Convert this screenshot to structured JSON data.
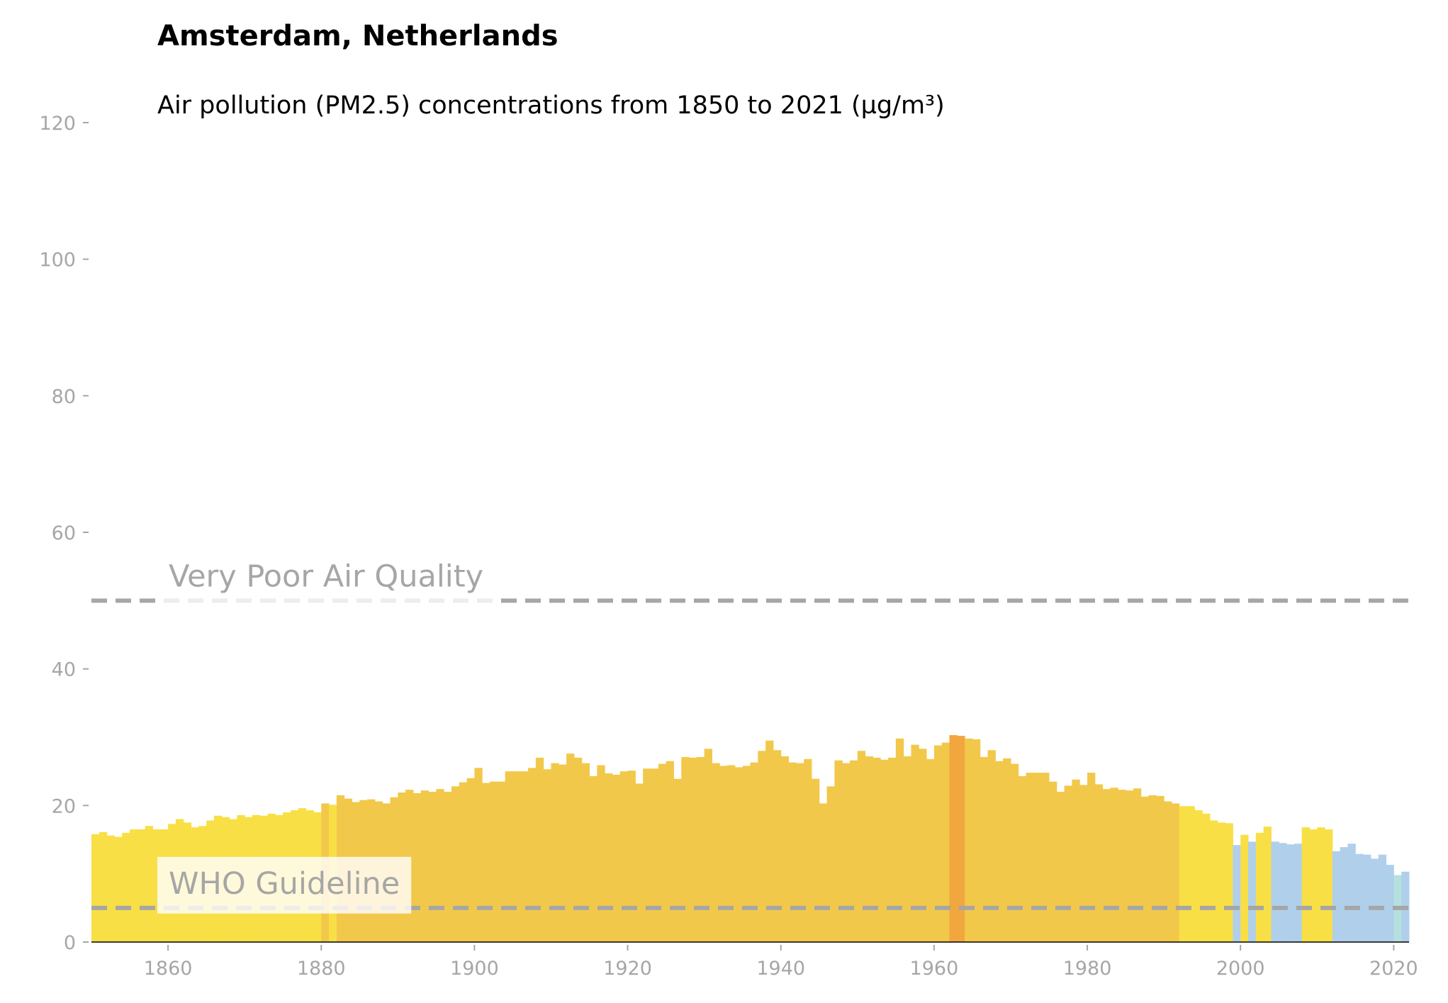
{
  "chart_data": {
    "type": "bar",
    "title": "Amsterdam, Netherlands",
    "subtitle": "Air pollution (PM2.5) concentrations from 1850 to 2021 (µg/m³)",
    "x": [
      1850,
      1851,
      1852,
      1853,
      1854,
      1855,
      1856,
      1857,
      1858,
      1859,
      1860,
      1861,
      1862,
      1863,
      1864,
      1865,
      1866,
      1867,
      1868,
      1869,
      1870,
      1871,
      1872,
      1873,
      1874,
      1875,
      1876,
      1877,
      1878,
      1879,
      1880,
      1881,
      1882,
      1883,
      1884,
      1885,
      1886,
      1887,
      1888,
      1889,
      1890,
      1891,
      1892,
      1893,
      1894,
      1895,
      1896,
      1897,
      1898,
      1899,
      1900,
      1901,
      1902,
      1903,
      1904,
      1905,
      1906,
      1907,
      1908,
      1909,
      1910,
      1911,
      1912,
      1913,
      1914,
      1915,
      1916,
      1917,
      1918,
      1919,
      1920,
      1921,
      1922,
      1923,
      1924,
      1925,
      1926,
      1927,
      1928,
      1929,
      1930,
      1931,
      1932,
      1933,
      1934,
      1935,
      1936,
      1937,
      1938,
      1939,
      1940,
      1941,
      1942,
      1943,
      1944,
      1945,
      1946,
      1947,
      1948,
      1949,
      1950,
      1951,
      1952,
      1953,
      1954,
      1955,
      1956,
      1957,
      1958,
      1959,
      1960,
      1961,
      1962,
      1963,
      1964,
      1965,
      1966,
      1967,
      1968,
      1969,
      1970,
      1971,
      1972,
      1973,
      1974,
      1975,
      1976,
      1977,
      1978,
      1979,
      1980,
      1981,
      1982,
      1983,
      1984,
      1985,
      1986,
      1987,
      1988,
      1989,
      1990,
      1991,
      1992,
      1993,
      1994,
      1995,
      1996,
      1997,
      1998,
      1999,
      2000,
      2001,
      2002,
      2003,
      2004,
      2005,
      2006,
      2007,
      2008,
      2009,
      2010,
      2011,
      2012,
      2013,
      2014,
      2015,
      2016,
      2017,
      2018,
      2019,
      2020,
      2021
    ],
    "values": [
      15.8,
      16.1,
      15.6,
      15.4,
      16.0,
      16.5,
      16.5,
      17.0,
      16.5,
      16.5,
      17.3,
      18.0,
      17.5,
      16.8,
      17.0,
      17.8,
      18.5,
      18.3,
      18.0,
      18.6,
      18.3,
      18.6,
      18.5,
      18.8,
      18.6,
      19.0,
      19.3,
      19.6,
      19.3,
      19.0,
      20.3,
      20.1,
      21.5,
      21.0,
      20.5,
      20.8,
      20.9,
      20.6,
      20.3,
      21.2,
      21.9,
      22.3,
      21.8,
      22.2,
      22.0,
      22.4,
      22.0,
      22.8,
      23.4,
      24.0,
      25.5,
      23.3,
      23.5,
      23.5,
      25.0,
      25.0,
      25.0,
      25.5,
      27.0,
      25.3,
      26.2,
      26.0,
      27.6,
      27.0,
      26.2,
      24.3,
      25.9,
      24.7,
      24.5,
      25.0,
      25.1,
      23.2,
      25.4,
      25.4,
      26.1,
      26.5,
      23.9,
      27.1,
      27.0,
      27.1,
      28.3,
      26.2,
      25.8,
      25.9,
      25.6,
      25.8,
      26.3,
      28.0,
      29.5,
      28.1,
      27.2,
      26.3,
      26.2,
      26.8,
      23.9,
      20.3,
      22.8,
      26.6,
      26.2,
      26.6,
      28.0,
      27.2,
      27.0,
      26.7,
      27.0,
      29.8,
      27.2,
      28.9,
      28.3,
      26.8,
      28.8,
      29.2,
      30.3,
      30.2,
      29.8,
      29.7,
      27.1,
      28.1,
      26.5,
      26.9,
      26.1,
      24.3,
      24.8,
      24.8,
      24.8,
      23.5,
      22.0,
      22.9,
      23.8,
      23.0,
      24.8,
      23.1,
      22.4,
      22.6,
      22.3,
      22.2,
      22.5,
      21.3,
      21.5,
      21.4,
      20.6,
      20.3,
      19.9,
      19.9,
      19.3,
      18.8,
      17.8,
      17.5,
      17.4,
      14.2,
      15.7,
      14.7,
      16.0,
      16.9,
      14.7,
      14.5,
      14.3,
      14.4,
      16.8,
      16.5,
      16.8,
      16.5,
      13.3,
      13.9,
      14.4,
      12.9,
      12.8,
      12.2,
      12.8,
      11.3,
      9.8,
      10.3
    ],
    "colors": [
      "#f8df45",
      "#f8df45",
      "#f8df45",
      "#f8df45",
      "#f8df45",
      "#f8df45",
      "#f8df45",
      "#f8df45",
      "#f8df45",
      "#f8df45",
      "#f8df45",
      "#f8df45",
      "#f8df45",
      "#f8df45",
      "#f8df45",
      "#f8df45",
      "#f8df45",
      "#f8df45",
      "#f8df45",
      "#f8df45",
      "#f8df45",
      "#f8df45",
      "#f8df45",
      "#f8df45",
      "#f8df45",
      "#f8df45",
      "#f8df45",
      "#f8df45",
      "#f8df45",
      "#f8df45",
      "#f2c84b",
      "#f8df45",
      "#f2c84b",
      "#f2c84b",
      "#f2c84b",
      "#f2c84b",
      "#f2c84b",
      "#f2c84b",
      "#f2c84b",
      "#f2c84b",
      "#f2c84b",
      "#f2c84b",
      "#f2c84b",
      "#f2c84b",
      "#f2c84b",
      "#f2c84b",
      "#f2c84b",
      "#f2c84b",
      "#f2c84b",
      "#f2c84b",
      "#f2c84b",
      "#f2c84b",
      "#f2c84b",
      "#f2c84b",
      "#f2c84b",
      "#f2c84b",
      "#f2c84b",
      "#f2c84b",
      "#f2c84b",
      "#f2c84b",
      "#f2c84b",
      "#f2c84b",
      "#f2c84b",
      "#f2c84b",
      "#f2c84b",
      "#f2c84b",
      "#f2c84b",
      "#f2c84b",
      "#f2c84b",
      "#f2c84b",
      "#f2c84b",
      "#f2c84b",
      "#f2c84b",
      "#f2c84b",
      "#f2c84b",
      "#f2c84b",
      "#f2c84b",
      "#f2c84b",
      "#f2c84b",
      "#f2c84b",
      "#f2c84b",
      "#f2c84b",
      "#f2c84b",
      "#f2c84b",
      "#f2c84b",
      "#f2c84b",
      "#f2c84b",
      "#f2c84b",
      "#f2c84b",
      "#f2c84b",
      "#f2c84b",
      "#f2c84b",
      "#f2c84b",
      "#f2c84b",
      "#f2c84b",
      "#f2c84b",
      "#f2c84b",
      "#f2c84b",
      "#f2c84b",
      "#f2c84b",
      "#f2c84b",
      "#f2c84b",
      "#f2c84b",
      "#f2c84b",
      "#f2c84b",
      "#f2c84b",
      "#f2c84b",
      "#f2c84b",
      "#f2c84b",
      "#f2c84b",
      "#f2c84b",
      "#f2c84b",
      "#f1a73e",
      "#f1a73e",
      "#f2c84b",
      "#f2c84b",
      "#f2c84b",
      "#f2c84b",
      "#f2c84b",
      "#f2c84b",
      "#f2c84b",
      "#f2c84b",
      "#f2c84b",
      "#f2c84b",
      "#f2c84b",
      "#f2c84b",
      "#f2c84b",
      "#f2c84b",
      "#f2c84b",
      "#f2c84b",
      "#f2c84b",
      "#f2c84b",
      "#f2c84b",
      "#f2c84b",
      "#f2c84b",
      "#f2c84b",
      "#f2c84b",
      "#f2c84b",
      "#f2c84b",
      "#f2c84b",
      "#f2c84b",
      "#f2c84b",
      "#f8df45",
      "#f8df45",
      "#f8df45",
      "#f8df45",
      "#f8df45",
      "#f8df45",
      "#f8df45",
      "#b0cfeb",
      "#f8df45",
      "#b0cfeb",
      "#f8df45",
      "#f8df45",
      "#b0cfeb",
      "#b0cfeb",
      "#b0cfeb",
      "#b0cfeb",
      "#f8df45",
      "#f8df45",
      "#f8df45",
      "#f8df45",
      "#b0cfeb",
      "#b0cfeb",
      "#b0cfeb",
      "#b0cfeb",
      "#b0cfeb",
      "#b0cfeb",
      "#b0cfeb",
      "#b0cfeb",
      "#b5e0dd",
      "#b0cfeb"
    ],
    "reference_lines": [
      {
        "value": 5,
        "label": "WHO Guideline"
      },
      {
        "value": 50,
        "label": "Very Poor Air Quality"
      }
    ],
    "reference_color": "#a6a6a6",
    "xlim": [
      1850,
      2022
    ],
    "xticks": [
      1860,
      1880,
      1900,
      1920,
      1940,
      1960,
      1980,
      2000,
      2020
    ],
    "ylim": [
      0,
      120
    ],
    "yticks": [
      0,
      20,
      40,
      60,
      80,
      100,
      120
    ]
  }
}
